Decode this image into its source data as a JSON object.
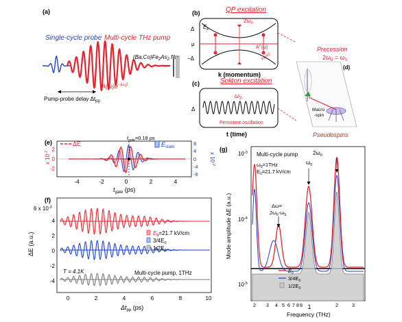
{
  "panel_a": {
    "tag": "(a)",
    "probe_label": "Single-cycle probe",
    "pump_label": "Multi-cycle THz pump",
    "film": "(Ba,Co)Fe",
    "film_sub": "2",
    "film_rest": "As",
    "film_sub2": "2",
    "film_end": " film",
    "field_expr": "A(ω)e",
    "field_exp": "−iω",
    "field_exp_sub": "0",
    "field_exp_end": "t",
    "delay_label": "Pump-probe delay Δt",
    "delay_sub": "pp"
  },
  "panel_b": {
    "tag": "(b)",
    "title": "QP excitation",
    "ek": "E",
    "ek_sub": "k",
    "two_w0": "2ω",
    "two_w0_sub": "0",
    "y_delta": "Δ",
    "y_mu": "μ",
    "y_mdelta": "−Δ",
    "a2": "A",
    "a2_sup": "2",
    "a2_end": "(ω)",
    "a_w0": "A(ω",
    "a_w0_sub": "0",
    "a_w0_end": ")",
    "xlabel": "k (momentum)"
  },
  "panel_c": {
    "tag": "(c)",
    "title": "Soliton excitation",
    "omega": "ω",
    "omega_sub": "S",
    "ylabel": "Δ",
    "persist": "Persistent oscillation",
    "xlabel": "t (time)"
  },
  "panel_d": {
    "tag": "(d)",
    "precession": "Precession",
    "relation": "2ω",
    "relation_sub": "0",
    "relation_mid": " = ω",
    "relation_sub2": "S",
    "macro": "Macro",
    "spin": "-spin",
    "pseudospins": "Pseudospins"
  },
  "panel_e": {
    "tag": "(e)",
    "legend_dE": "ΔE",
    "legend_static": "E",
    "legend_static_sub": "static",
    "tgate": "t",
    "tgate_sub": "gate",
    "tgate_val": "=0.18 ps",
    "left_unit": "x 10",
    "left_unit_exp": "-2",
    "right_unit": "x 10",
    "right_unit_exp": "-2",
    "xlabel": "t",
    "xlabel_sub": "gate",
    "xlabel_end": " (ps)",
    "left_ticks": [
      "2",
      "0",
      "-2"
    ],
    "right_ticks": [
      "8",
      "4",
      "0",
      "-4",
      "-8"
    ],
    "x_ticks": [
      "-4",
      "-2",
      "0",
      "2",
      "4"
    ]
  },
  "panel_f": {
    "tag": "(f)",
    "ylabel": "ΔE (a.u.)",
    "top_unit": "6 x 10",
    "top_unit_exp": "-3",
    "y_ticks": [
      "4",
      "2",
      "0",
      "-2",
      "-4"
    ],
    "legend": [
      {
        "text": "E",
        "sub": "0",
        "rest": "=21.7 kV/cm",
        "color": "#e8212b"
      },
      {
        "text": "3/4E",
        "sub": "0",
        "rest": "",
        "color": "#1d3fd0"
      },
      {
        "text": "1/2E",
        "sub": "0",
        "rest": "",
        "color": "#7d7d7d"
      }
    ],
    "temp": "T = 4.1K",
    "pump_note": "Multi-cycle pump, 1THz",
    "xlabel": "Δt",
    "xlabel_sub": "pp",
    "xlabel_end": " (ps)",
    "x_ticks": [
      "0",
      "2",
      "4",
      "6",
      "8",
      "10"
    ]
  },
  "panel_g": {
    "tag": "(g)",
    "title": "Multi-cycle pump",
    "w0_val": "ω",
    "w0_val_sub": "0",
    "w0_val_end": "=1THz",
    "e0_val": "E",
    "e0_val_sub": "0",
    "e0_val_end": "=21.7 kV/cm",
    "label_w0": "ω",
    "label_w0_sub": "0",
    "label_2w0": "2ω",
    "label_2w0_sub": "0",
    "dw": "Δω=",
    "dw2": "2ω",
    "dw2_sub": "0",
    "dw2_mid": "-ω",
    "dw2_sub2": "S",
    "ylabel": "Mode amplitude ΔE (a.u.)",
    "xlabel": "Frequency (THz)",
    "y_ticks": [
      "10",
      "10",
      "10"
    ],
    "y_exps": [
      "-3",
      "-4",
      "-5"
    ],
    "x_ticks": [
      "2",
      "3",
      "4",
      "5",
      "6",
      "7",
      "8",
      "9",
      "1",
      "2",
      "3"
    ],
    "legend": [
      {
        "text": "E",
        "sub": "0",
        "color": "#e8212b"
      },
      {
        "text": "3/4E",
        "sub": "0",
        "color": "#1d3fd0"
      },
      {
        "text": "1/2E",
        "sub": "0",
        "color": "#7d7d7d"
      }
    ]
  }
}
